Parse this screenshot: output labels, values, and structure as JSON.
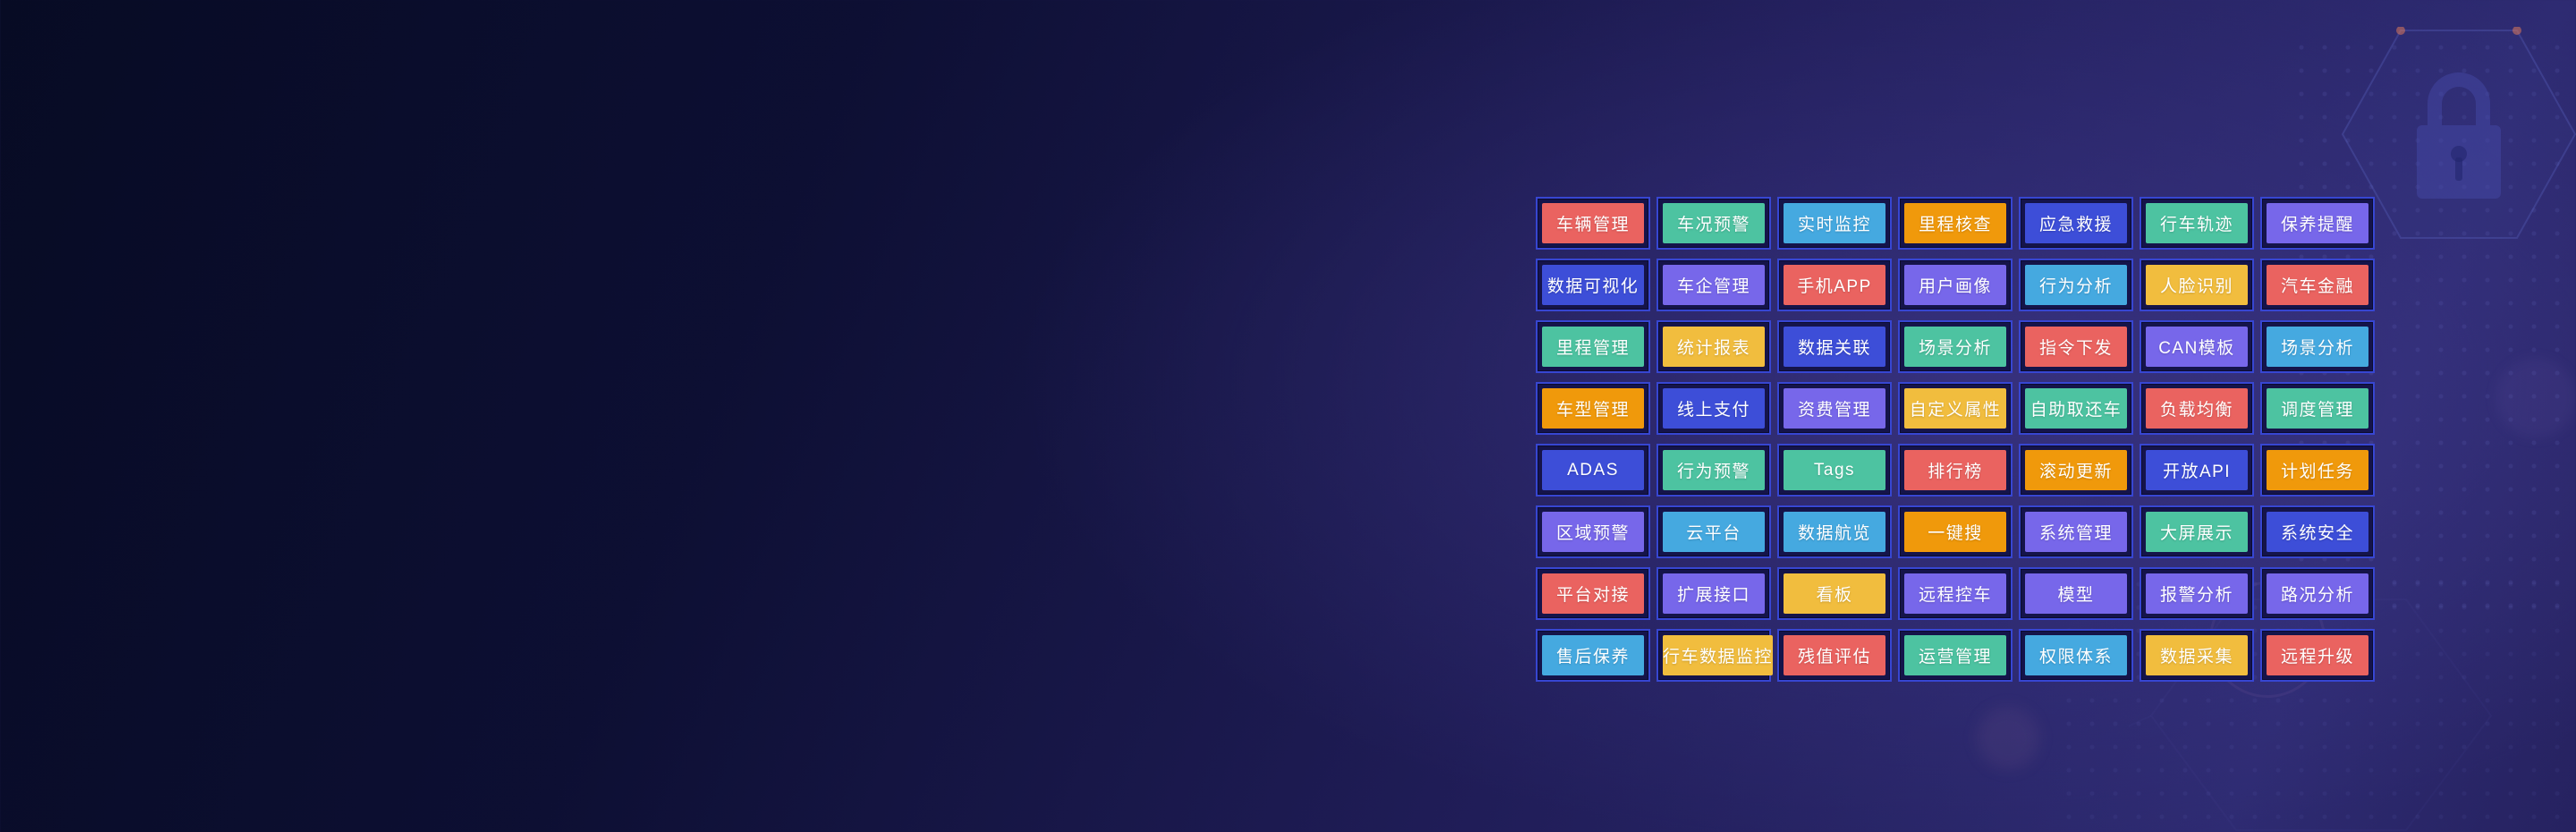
{
  "background": {
    "base_dark": "#070b24",
    "glow_purple": "#2e2b72",
    "cell_border": "#3746d2",
    "cell_inner_bg": "#15144a"
  },
  "palette": {
    "red": "#ea6360",
    "teal": "#4dc3a1",
    "sky": "#45a9e0",
    "orange": "#f0990b",
    "gold": "#f1bd3e",
    "royal": "#3d4ed8",
    "purple": "#7767ea"
  },
  "decor": {
    "lock_icon": "lock-icon",
    "hexagon": "hexagon-decoration",
    "dot_pattern": "dot-grid-pattern"
  },
  "feature_grid": {
    "rows": [
      {
        "cells": [
          {
            "label": "车辆管理",
            "color": "red"
          },
          {
            "label": "车况预警",
            "color": "teal"
          },
          {
            "label": "实时监控",
            "color": "sky"
          },
          {
            "label": "里程核查",
            "color": "orange"
          },
          {
            "label": "应急救援",
            "color": "royal"
          },
          {
            "label": "行车轨迹",
            "color": "teal"
          },
          {
            "label": "保养提醒",
            "color": "purple"
          }
        ]
      },
      {
        "cells": [
          {
            "label": "数据可视化",
            "color": "royal"
          },
          {
            "label": "车企管理",
            "color": "purple"
          },
          {
            "label": "手机APP",
            "color": "red"
          },
          {
            "label": "用户画像",
            "color": "purple"
          },
          {
            "label": "行为分析",
            "color": "sky"
          },
          {
            "label": "人脸识别",
            "color": "gold"
          },
          {
            "label": "汽车金融",
            "color": "red"
          }
        ]
      },
      {
        "cells": [
          {
            "label": "里程管理",
            "color": "teal"
          },
          {
            "label": "统计报表",
            "color": "gold"
          },
          {
            "label": "数据关联",
            "color": "royal"
          },
          {
            "label": "场景分析",
            "color": "teal"
          },
          {
            "label": "指令下发",
            "color": "red"
          },
          {
            "label": "CAN模板",
            "color": "purple"
          },
          {
            "label": "场景分析",
            "color": "sky"
          }
        ]
      },
      {
        "cells": [
          {
            "label": "车型管理",
            "color": "orange"
          },
          {
            "label": "线上支付",
            "color": "royal"
          },
          {
            "label": "资费管理",
            "color": "purple"
          },
          {
            "label": "自定义属性",
            "color": "gold"
          },
          {
            "label": "自助取还车",
            "color": "teal"
          },
          {
            "label": "负载均衡",
            "color": "red"
          },
          {
            "label": "调度管理",
            "color": "teal"
          }
        ]
      },
      {
        "cells": [
          {
            "label": "ADAS",
            "color": "royal"
          },
          {
            "label": "行为预警",
            "color": "teal"
          },
          {
            "label": "Tags",
            "color": "teal"
          },
          {
            "label": "排行榜",
            "color": "red"
          },
          {
            "label": "滚动更新",
            "color": "orange"
          },
          {
            "label": "开放API",
            "color": "royal"
          },
          {
            "label": "计划任务",
            "color": "orange"
          }
        ]
      },
      {
        "cells": [
          {
            "label": "区域预警",
            "color": "purple"
          },
          {
            "label": "云平台",
            "color": "sky"
          },
          {
            "label": "数据航览",
            "color": "sky"
          },
          {
            "label": "一键搜",
            "color": "orange"
          },
          {
            "label": "系统管理",
            "color": "purple"
          },
          {
            "label": "大屏展示",
            "color": "teal"
          },
          {
            "label": "系统安全",
            "color": "royal"
          }
        ]
      },
      {
        "cells": [
          {
            "label": "平台对接",
            "color": "red"
          },
          {
            "label": "扩展接口",
            "color": "purple"
          },
          {
            "label": "看板",
            "color": "gold"
          },
          {
            "label": "远程控车",
            "color": "purple"
          },
          {
            "label": "模型",
            "color": "purple"
          },
          {
            "label": "报警分析",
            "color": "purple"
          },
          {
            "label": "路况分析",
            "color": "purple"
          }
        ]
      },
      {
        "cells": [
          {
            "label": "售后保养",
            "color": "sky"
          },
          {
            "label": "行车数据监控",
            "color": "gold"
          },
          {
            "label": "残值评估",
            "color": "red"
          },
          {
            "label": "运营管理",
            "color": "teal"
          },
          {
            "label": "权限体系",
            "color": "sky"
          },
          {
            "label": "数据采集",
            "color": "gold"
          },
          {
            "label": "远程升级",
            "color": "red"
          }
        ]
      }
    ]
  }
}
